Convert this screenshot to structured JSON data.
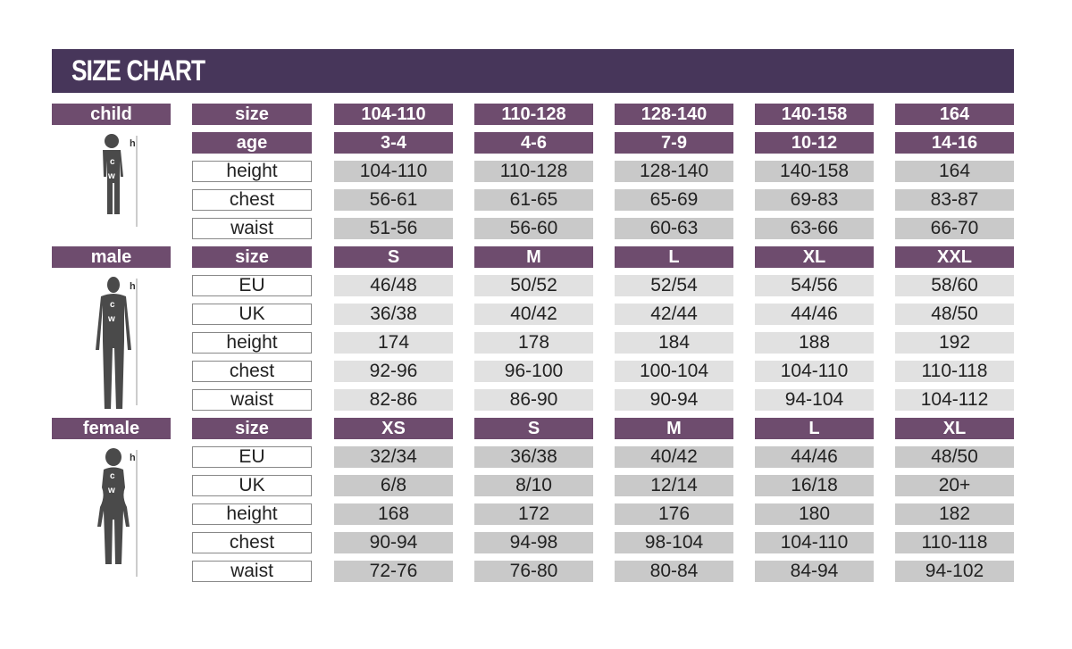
{
  "title": "SIZE CHART",
  "colors": {
    "title_bar": "#47365a",
    "header_cell": "#6e4c6e",
    "value_cell": "#c9c9c9",
    "value_cell_male": "#e1e1e1",
    "figure": "#4a4a4a"
  },
  "groups": [
    {
      "name": "child",
      "figure_icon": "child-silhouette-icon",
      "rows": [
        {
          "label": "size",
          "header": true,
          "values": [
            "104-110",
            "110-128",
            "128-140",
            "140-158",
            "164"
          ]
        },
        {
          "label": "age",
          "header": true,
          "values": [
            "3-4",
            "4-6",
            "7-9",
            "10-12",
            "14-16"
          ]
        },
        {
          "label": "height",
          "values": [
            "104-110",
            "110-128",
            "128-140",
            "140-158",
            "164"
          ]
        },
        {
          "label": "chest",
          "values": [
            "56-61",
            "61-65",
            "65-69",
            "69-83",
            "83-87"
          ]
        },
        {
          "label": "waist",
          "values": [
            "51-56",
            "56-60",
            "60-63",
            "63-66",
            "66-70"
          ]
        }
      ]
    },
    {
      "name": "male",
      "figure_icon": "male-silhouette-icon",
      "rows": [
        {
          "label": "size",
          "header": true,
          "values": [
            "S",
            "M",
            "L",
            "XL",
            "XXL"
          ]
        },
        {
          "label": "EU",
          "values": [
            "46/48",
            "50/52",
            "52/54",
            "54/56",
            "58/60"
          ]
        },
        {
          "label": "UK",
          "values": [
            "36/38",
            "40/42",
            "42/44",
            "44/46",
            "48/50"
          ]
        },
        {
          "label": "height",
          "values": [
            "174",
            "178",
            "184",
            "188",
            "192"
          ]
        },
        {
          "label": "chest",
          "values": [
            "92-96",
            "96-100",
            "100-104",
            "104-110",
            "110-118"
          ]
        },
        {
          "label": "waist",
          "values": [
            "82-86",
            "86-90",
            "90-94",
            "94-104",
            "104-112"
          ]
        }
      ]
    },
    {
      "name": "female",
      "figure_icon": "female-silhouette-icon",
      "rows": [
        {
          "label": "size",
          "header": true,
          "values": [
            "XS",
            "S",
            "M",
            "L",
            "XL"
          ]
        },
        {
          "label": "EU",
          "values": [
            "32/34",
            "36/38",
            "40/42",
            "44/46",
            "48/50"
          ]
        },
        {
          "label": "UK",
          "values": [
            "6/8",
            "8/10",
            "12/14",
            "16/18",
            "20+"
          ]
        },
        {
          "label": "height",
          "values": [
            "168",
            "172",
            "176",
            "180",
            "182"
          ]
        },
        {
          "label": "chest",
          "values": [
            "90-94",
            "94-98",
            "98-104",
            "104-110",
            "110-118"
          ]
        },
        {
          "label": "waist",
          "values": [
            "72-76",
            "76-80",
            "80-84",
            "84-94",
            "94-102"
          ]
        }
      ]
    }
  ],
  "figure_labels": {
    "height": "h",
    "chest": "c",
    "waist": "w"
  }
}
